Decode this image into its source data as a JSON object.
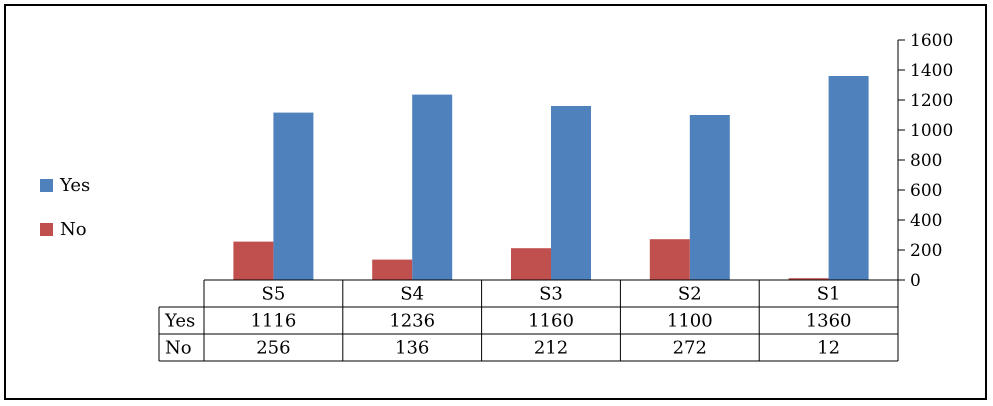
{
  "chart_data": {
    "type": "bar",
    "categories": [
      "S5",
      "S4",
      "S3",
      "S2",
      "S1"
    ],
    "series": [
      {
        "name": "Yes",
        "values": [
          1116,
          1236,
          1160,
          1100,
          1360
        ]
      },
      {
        "name": "No",
        "values": [
          256,
          136,
          212,
          272,
          12
        ]
      }
    ],
    "ylim": [
      0,
      1600
    ],
    "yticks": [
      0,
      200,
      400,
      600,
      800,
      1000,
      1200,
      1400,
      1600
    ],
    "y_axis_side": "right",
    "legend_position": "left",
    "data_table": true,
    "grid": false,
    "title": "",
    "xlabel": "",
    "ylabel": ""
  },
  "colors": {
    "Yes": "#4F81BD",
    "No": "#C0504D"
  }
}
